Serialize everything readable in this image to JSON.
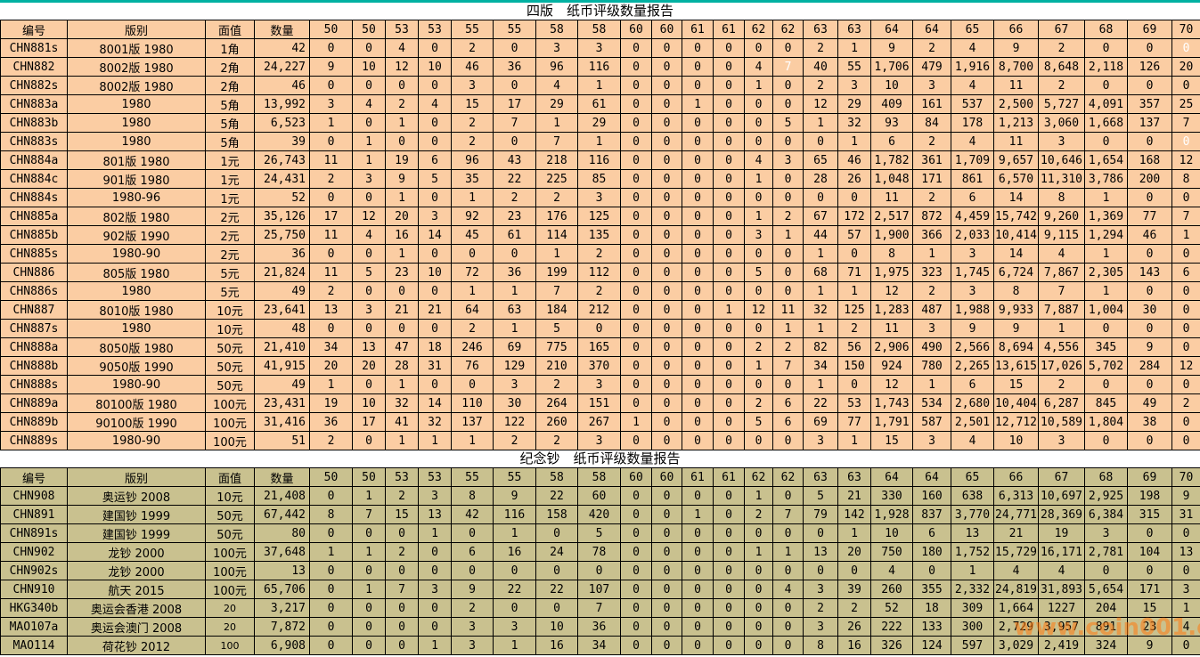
{
  "page": {
    "watermark": "www.coin001.com",
    "watermark_color": "#ff7c12",
    "top_bar_color": "#00b1a2",
    "table1_row_color": "#fbcda3",
    "table2_row_color": "#c9c18f"
  },
  "columns": [
    "编号",
    "版别",
    "面值",
    "数量",
    "50",
    "50",
    "53",
    "53",
    "55",
    "55",
    "58",
    "58",
    "60",
    "60",
    "61",
    "61",
    "62",
    "62",
    "63",
    "63",
    "64",
    "64",
    "65",
    "66",
    "67",
    "68",
    "69",
    "70"
  ],
  "tables": [
    {
      "title": "四版　纸币评级数量报告",
      "rows": [
        {
          "id": "CHN881s",
          "version": "8001版 1980",
          "denom": "1角",
          "qty": "42",
          "grades": [
            0,
            0,
            4,
            0,
            2,
            0,
            3,
            3,
            0,
            0,
            0,
            0,
            0,
            0,
            2,
            1,
            9,
            2,
            4,
            9,
            2,
            0,
            0,
            0
          ],
          "white": [
            23
          ]
        },
        {
          "id": "CHN882",
          "version": "8002版 1980",
          "denom": "2角",
          "qty": "24,227",
          "grades": [
            9,
            10,
            12,
            10,
            46,
            36,
            96,
            116,
            0,
            0,
            0,
            0,
            4,
            7,
            40,
            55,
            "1,706",
            479,
            "1,916",
            "8,700",
            "8,648",
            "2,118",
            126,
            20
          ],
          "white": [
            13
          ]
        },
        {
          "id": "CHN882s",
          "version": "8002版 1980",
          "denom": "2角",
          "qty": "46",
          "grades": [
            0,
            0,
            0,
            0,
            3,
            0,
            4,
            1,
            0,
            0,
            0,
            0,
            1,
            0,
            2,
            3,
            10,
            3,
            4,
            11,
            2,
            0,
            0,
            0
          ],
          "white": []
        },
        {
          "id": "CHN883a",
          "version": "1980",
          "denom": "5角",
          "qty": "13,992",
          "grades": [
            3,
            4,
            2,
            4,
            15,
            17,
            29,
            61,
            0,
            0,
            1,
            0,
            0,
            0,
            12,
            29,
            409,
            161,
            537,
            "2,500",
            "5,727",
            "4,091",
            357,
            25
          ],
          "white": []
        },
        {
          "id": "CHN883b",
          "version": "1980",
          "denom": "5角",
          "qty": "6,523",
          "grades": [
            1,
            0,
            1,
            0,
            2,
            7,
            1,
            29,
            0,
            0,
            0,
            0,
            0,
            5,
            1,
            32,
            93,
            84,
            178,
            "1,213",
            "3,060",
            "1,668",
            137,
            7
          ],
          "white": []
        },
        {
          "id": "CHN883s",
          "version": "1980",
          "denom": "5角",
          "qty": "39",
          "grades": [
            0,
            1,
            0,
            0,
            2,
            0,
            7,
            1,
            0,
            0,
            0,
            0,
            0,
            0,
            0,
            1,
            6,
            2,
            4,
            11,
            3,
            0,
            0,
            0
          ],
          "white": [
            23
          ]
        },
        {
          "id": "CHN884a",
          "version": "801版 1980",
          "denom": "1元",
          "qty": "26,743",
          "grades": [
            11,
            1,
            19,
            6,
            96,
            43,
            218,
            116,
            0,
            0,
            0,
            0,
            4,
            3,
            65,
            46,
            "1,782",
            361,
            "1,709",
            "9,657",
            "10,646",
            "1,654",
            168,
            12
          ],
          "white": []
        },
        {
          "id": "CHN884c",
          "version": "901版 1980",
          "denom": "1元",
          "qty": "24,431",
          "grades": [
            2,
            3,
            9,
            5,
            35,
            22,
            225,
            85,
            0,
            0,
            0,
            0,
            1,
            0,
            28,
            26,
            "1,048",
            171,
            861,
            "6,570",
            "11,310",
            "3,786",
            200,
            8
          ],
          "white": []
        },
        {
          "id": "CHN884s",
          "version": "1980-96",
          "denom": "1元",
          "qty": "52",
          "grades": [
            0,
            0,
            1,
            0,
            1,
            2,
            2,
            3,
            0,
            0,
            0,
            0,
            0,
            0,
            0,
            0,
            11,
            2,
            6,
            14,
            8,
            1,
            0,
            0
          ],
          "white": []
        },
        {
          "id": "CHN885a",
          "version": "802版 1980",
          "denom": "2元",
          "qty": "35,126",
          "grades": [
            17,
            12,
            20,
            3,
            92,
            23,
            176,
            125,
            0,
            0,
            0,
            0,
            1,
            2,
            67,
            172,
            "2,517",
            872,
            "4,459",
            "15,742",
            "9,260",
            "1,369",
            77,
            7
          ],
          "white": []
        },
        {
          "id": "CHN885b",
          "version": "902版 1990",
          "denom": "2元",
          "qty": "25,750",
          "grades": [
            11,
            4,
            16,
            14,
            45,
            61,
            114,
            135,
            0,
            0,
            0,
            0,
            3,
            1,
            44,
            57,
            "1,900",
            366,
            "2,033",
            "10,414",
            "9,115",
            "1,294",
            46,
            1
          ],
          "white": []
        },
        {
          "id": "CHN885s",
          "version": "1980-90",
          "denom": "2元",
          "qty": "36",
          "grades": [
            0,
            0,
            1,
            0,
            0,
            0,
            1,
            2,
            0,
            0,
            0,
            0,
            0,
            0,
            1,
            0,
            8,
            1,
            3,
            14,
            4,
            1,
            0,
            0
          ],
          "white": []
        },
        {
          "id": "CHN886",
          "version": "805版 1980",
          "denom": "5元",
          "qty": "21,824",
          "grades": [
            11,
            5,
            23,
            10,
            72,
            36,
            199,
            112,
            0,
            0,
            0,
            0,
            5,
            0,
            68,
            71,
            "1,975",
            323,
            "1,745",
            "6,724",
            "7,867",
            "2,305",
            143,
            6
          ],
          "white": []
        },
        {
          "id": "CHN886s",
          "version": "1980",
          "denom": "5元",
          "qty": "49",
          "grades": [
            2,
            0,
            0,
            0,
            1,
            1,
            7,
            2,
            0,
            0,
            0,
            0,
            0,
            0,
            1,
            1,
            12,
            2,
            3,
            8,
            7,
            1,
            0,
            0
          ],
          "white": []
        },
        {
          "id": "CHN887",
          "version": "8010版 1980",
          "denom": "10元",
          "qty": "23,641",
          "grades": [
            13,
            3,
            21,
            21,
            64,
            63,
            184,
            212,
            0,
            0,
            0,
            1,
            12,
            11,
            32,
            125,
            "1,283",
            487,
            "1,988",
            "9,933",
            "7,887",
            "1,004",
            30,
            0
          ],
          "white": []
        },
        {
          "id": "CHN887s",
          "version": "1980",
          "denom": "10元",
          "qty": "48",
          "grades": [
            0,
            0,
            0,
            0,
            2,
            1,
            5,
            0,
            0,
            0,
            0,
            0,
            0,
            1,
            1,
            2,
            11,
            3,
            9,
            9,
            1,
            0,
            0,
            0
          ],
          "white": []
        },
        {
          "id": "CHN888a",
          "version": "8050版 1980",
          "denom": "50元",
          "qty": "21,410",
          "grades": [
            34,
            13,
            47,
            18,
            246,
            69,
            775,
            165,
            0,
            0,
            0,
            0,
            2,
            2,
            82,
            56,
            "2,906",
            490,
            "2,566",
            "8,694",
            "4,556",
            345,
            9,
            0
          ],
          "white": []
        },
        {
          "id": "CHN888b",
          "version": "9050版 1990",
          "denom": "50元",
          "qty": "41,915",
          "grades": [
            20,
            20,
            28,
            31,
            76,
            129,
            210,
            370,
            0,
            0,
            0,
            0,
            1,
            7,
            34,
            150,
            924,
            780,
            "2,265",
            "13,615",
            "17,026",
            "5,702",
            284,
            12
          ],
          "white": []
        },
        {
          "id": "CHN888s",
          "version": "1980-90",
          "denom": "50元",
          "qty": "49",
          "grades": [
            1,
            0,
            1,
            0,
            0,
            3,
            2,
            3,
            0,
            0,
            0,
            0,
            0,
            0,
            1,
            0,
            12,
            1,
            6,
            15,
            2,
            0,
            0,
            0
          ],
          "white": []
        },
        {
          "id": "CHN889a",
          "version": "80100版 1980",
          "denom": "100元",
          "qty": "23,431",
          "grades": [
            19,
            10,
            32,
            14,
            110,
            30,
            264,
            151,
            0,
            0,
            0,
            0,
            2,
            6,
            22,
            53,
            "1,743",
            534,
            "2,680",
            "10,404",
            "6,287",
            845,
            49,
            2
          ],
          "white": []
        },
        {
          "id": "CHN889b",
          "version": "90100版 1990",
          "denom": "100元",
          "qty": "31,416",
          "grades": [
            36,
            17,
            41,
            32,
            137,
            122,
            260,
            267,
            1,
            0,
            0,
            0,
            5,
            6,
            69,
            77,
            "1,791",
            587,
            "2,501",
            "12,712",
            "10,589",
            "1,804",
            38,
            0
          ],
          "white": []
        },
        {
          "id": "CHN889s",
          "version": "1980-90",
          "denom": "100元",
          "qty": "51",
          "grades": [
            2,
            0,
            1,
            1,
            1,
            2,
            2,
            3,
            0,
            0,
            0,
            0,
            0,
            0,
            3,
            1,
            15,
            3,
            4,
            10,
            3,
            0,
            0,
            0
          ],
          "white": []
        }
      ]
    },
    {
      "title": "纪念钞　纸币评级数量报告",
      "rows": [
        {
          "id": "CHN908",
          "version": "奥运钞 2008",
          "denom": "10元",
          "qty": "21,408",
          "grades": [
            0,
            1,
            2,
            3,
            8,
            9,
            22,
            60,
            0,
            0,
            0,
            0,
            1,
            0,
            5,
            21,
            330,
            160,
            638,
            "6,313",
            "10,697",
            "2,925",
            198,
            9
          ],
          "white": []
        },
        {
          "id": "CHN891",
          "version": "建国钞 1999",
          "denom": "50元",
          "qty": "67,442",
          "grades": [
            8,
            7,
            15,
            13,
            42,
            116,
            158,
            420,
            0,
            0,
            1,
            0,
            2,
            7,
            79,
            142,
            "1,928",
            837,
            "3,770",
            "24,771",
            "28,369",
            "6,384",
            315,
            31
          ],
          "white": []
        },
        {
          "id": "CHN891s",
          "version": "建国钞 1999",
          "denom": "50元",
          "qty": "80",
          "grades": [
            0,
            0,
            0,
            1,
            0,
            1,
            0,
            5,
            0,
            0,
            0,
            0,
            0,
            0,
            0,
            1,
            10,
            6,
            13,
            21,
            19,
            3,
            0,
            0
          ],
          "white": []
        },
        {
          "id": "CHN902",
          "version": "龙钞 2000",
          "denom": "100元",
          "qty": "37,648",
          "grades": [
            1,
            1,
            2,
            0,
            6,
            16,
            24,
            78,
            0,
            0,
            0,
            0,
            1,
            1,
            13,
            20,
            750,
            180,
            "1,752",
            "15,729",
            "16,171",
            "2,781",
            104,
            13
          ],
          "white": []
        },
        {
          "id": "CHN902s",
          "version": "龙钞 2000",
          "denom": "100元",
          "qty": "13",
          "grades": [
            0,
            0,
            0,
            0,
            0,
            0,
            0,
            0,
            0,
            0,
            0,
            0,
            0,
            0,
            0,
            0,
            4,
            0,
            1,
            4,
            4,
            0,
            0,
            0
          ],
          "white": []
        },
        {
          "id": "CHN910",
          "version": "航天 2015",
          "denom": "100元",
          "qty": "65,706",
          "grades": [
            0,
            1,
            7,
            3,
            9,
            22,
            22,
            107,
            0,
            0,
            0,
            0,
            0,
            4,
            3,
            39,
            260,
            355,
            "2,332",
            "24,819",
            "31,893",
            "5,654",
            171,
            3
          ],
          "white": []
        },
        {
          "id": "HKG340b",
          "version": "奥运会香港 2008",
          "denom": "20",
          "denom_small": true,
          "qty": "3,217",
          "grades": [
            0,
            0,
            0,
            0,
            2,
            0,
            0,
            7,
            0,
            0,
            0,
            0,
            0,
            0,
            2,
            2,
            52,
            18,
            309,
            "1,664",
            "1227",
            204,
            15,
            1
          ],
          "white": []
        },
        {
          "id": "MAO107a",
          "version": "奥运会澳门 2008",
          "denom": "20",
          "denom_small": true,
          "qty": "7,872",
          "grades": [
            0,
            0,
            0,
            0,
            3,
            3,
            10,
            36,
            0,
            0,
            0,
            0,
            0,
            0,
            3,
            26,
            222,
            133,
            300,
            "2,729",
            "3,957",
            891,
            23,
            4
          ],
          "white": []
        },
        {
          "id": "MAO114",
          "version": "荷花钞 2012",
          "denom": "100",
          "denom_small": true,
          "qty": "6,908",
          "grades": [
            0,
            0,
            0,
            1,
            3,
            1,
            16,
            34,
            0,
            0,
            0,
            0,
            0,
            0,
            8,
            16,
            326,
            124,
            597,
            "3,029",
            "2,419",
            324,
            9,
            0
          ],
          "white": []
        }
      ]
    }
  ]
}
